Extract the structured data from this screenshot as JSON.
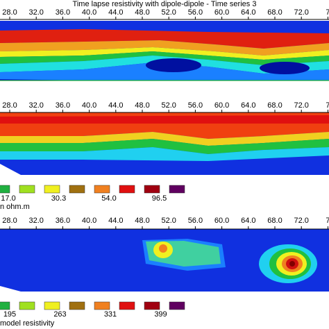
{
  "title": "Time lapse resistivity with dipole-dipole - Time series 3",
  "panels": [
    {
      "ticks": [
        "28.0",
        "32.0",
        "36.0",
        "40.0",
        "44.0",
        "48.0",
        "52.0",
        "56.0",
        "60.0",
        "64.0",
        "68.0",
        "72.0",
        "7"
      ]
    },
    {
      "ticks": [
        "28.0",
        "32.0",
        "36.0",
        "40.0",
        "44.0",
        "48.0",
        "52.0",
        "56.0",
        "60.0",
        "64.0",
        "68.0",
        "72.0",
        "7"
      ]
    },
    {
      "ticks": [
        "28.0",
        "32.0",
        "36.0",
        "40.0",
        "44.0",
        "48.0",
        "52.0",
        "56.0",
        "60.0",
        "64.0",
        "68.0",
        "72.0",
        "7"
      ]
    }
  ],
  "legends": [
    {
      "labels": [
        "17.0",
        "30.3",
        "54.0",
        "96.5"
      ],
      "caption": "n ohm.m"
    },
    {
      "labels": [
        "195",
        "263",
        "331",
        "399"
      ],
      "caption": "model resistivity"
    }
  ]
}
